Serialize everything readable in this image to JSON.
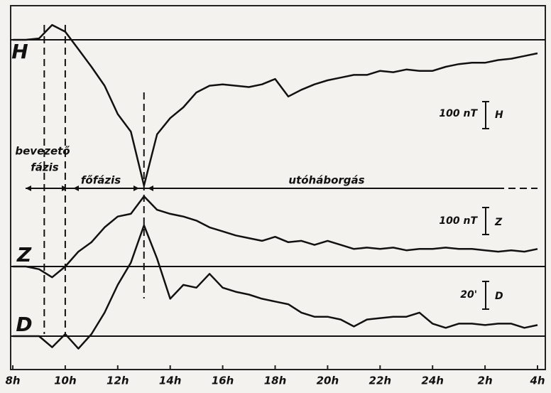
{
  "chart_data": {
    "type": "line",
    "x": [
      8,
      8.5,
      9,
      9.5,
      10,
      10.5,
      11,
      11.5,
      12,
      12.5,
      13,
      13.5,
      14,
      14.5,
      15,
      15.5,
      16,
      16.5,
      17,
      17.5,
      18,
      18.5,
      19,
      19.5,
      20,
      20.5,
      21,
      21.5,
      22,
      22.5,
      23,
      23.5,
      24,
      24.5,
      25,
      25.5,
      26,
      26.5,
      27,
      27.5,
      28
    ],
    "xlim": [
      8,
      28
    ],
    "xticks": [
      {
        "value": 8,
        "label": "8h"
      },
      {
        "value": 10,
        "label": "10h"
      },
      {
        "value": 12,
        "label": "12h"
      },
      {
        "value": 14,
        "label": "14h"
      },
      {
        "value": 16,
        "label": "16h"
      },
      {
        "value": 18,
        "label": "18h"
      },
      {
        "value": 20,
        "label": "20h"
      },
      {
        "value": 22,
        "label": "22h"
      },
      {
        "value": 24,
        "label": "24h"
      },
      {
        "value": 26,
        "label": "2h"
      },
      {
        "value": 28,
        "label": "4h"
      }
    ],
    "series": [
      {
        "name": "H",
        "color": "#111111",
        "values": [
          0,
          0,
          5,
          55,
          30,
          -35,
          -100,
          -170,
          -275,
          -340,
          -540,
          -350,
          -290,
          -250,
          -195,
          -170,
          -165,
          -170,
          -175,
          -165,
          -145,
          -210,
          -185,
          -165,
          -150,
          -140,
          -130,
          -130,
          -115,
          -120,
          -110,
          -115,
          -115,
          -100,
          -90,
          -85,
          -85,
          -75,
          -70,
          -60,
          -50
        ]
      },
      {
        "name": "Z",
        "color": "#111111",
        "values": [
          0,
          0,
          -10,
          -40,
          0,
          55,
          90,
          145,
          185,
          195,
          260,
          210,
          195,
          185,
          170,
          145,
          130,
          115,
          105,
          95,
          110,
          90,
          95,
          80,
          95,
          80,
          65,
          70,
          65,
          70,
          60,
          65,
          65,
          70,
          65,
          65,
          60,
          55,
          60,
          55,
          65
        ]
      },
      {
        "name": "D",
        "color": "#111111",
        "values": [
          0,
          0,
          0,
          -8,
          1.5,
          -9,
          1.5,
          17,
          37,
          53,
          80,
          56,
          27,
          37,
          35,
          45,
          35,
          32,
          30,
          27,
          25,
          23,
          17,
          14,
          14,
          12,
          7,
          12,
          13,
          14,
          14,
          17,
          9,
          6,
          9,
          9,
          8,
          9,
          9,
          6,
          8
        ]
      }
    ],
    "markers": [
      9.2,
      10,
      13
    ],
    "phases": [
      "bevezető",
      "fázis",
      "főfázis",
      "utóháborgás"
    ],
    "scale_labels": [
      "100 nT",
      "100 nT",
      "20'"
    ]
  }
}
